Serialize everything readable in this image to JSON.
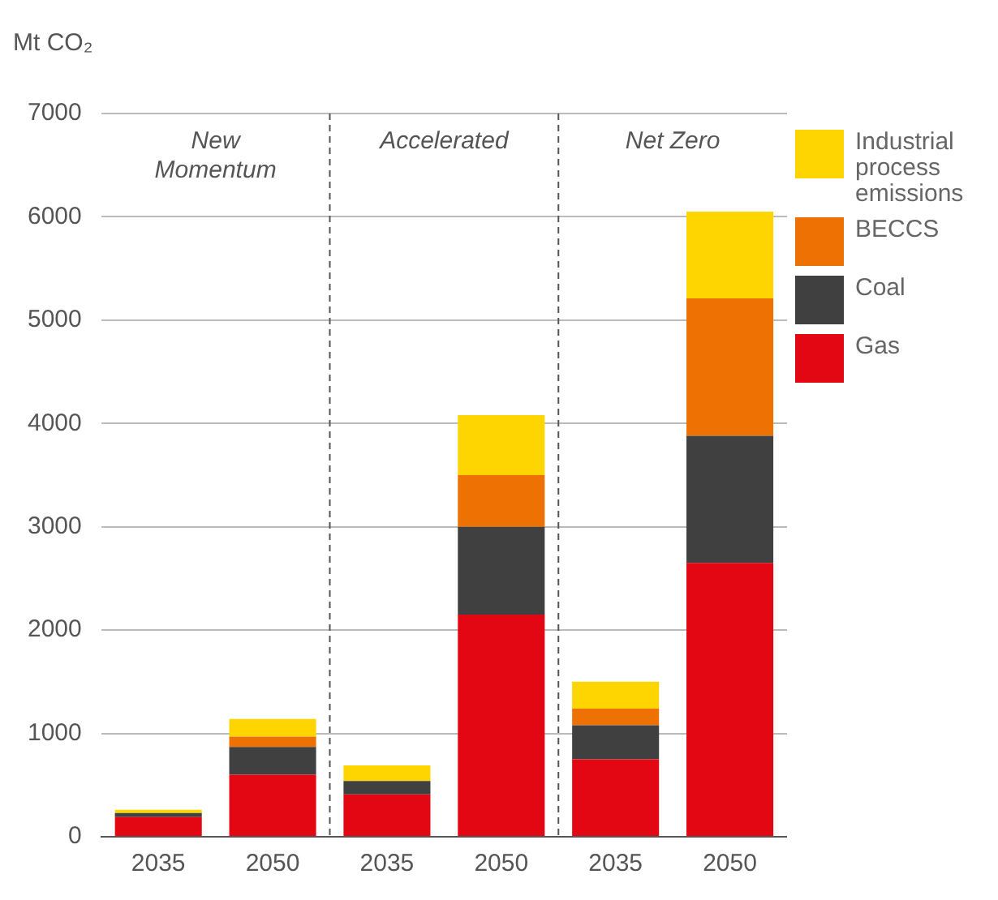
{
  "chart_data": {
    "type": "bar",
    "stacked": true,
    "ylabel": "Mt CO₂",
    "categories": [
      "2035",
      "2050",
      "2035",
      "2050",
      "2035",
      "2050"
    ],
    "series": [
      {
        "name": "Gas",
        "color": "#e30613",
        "values": [
          190,
          600,
          410,
          2150,
          750,
          2650
        ]
      },
      {
        "name": "Coal",
        "color": "#404040",
        "values": [
          40,
          270,
          130,
          850,
          330,
          1230
        ]
      },
      {
        "name": "BECCS",
        "color": "#ee7203",
        "values": [
          0,
          100,
          0,
          500,
          160,
          1330
        ]
      },
      {
        "name": "Industrial process emissions",
        "color": "#ffd500",
        "values": [
          30,
          170,
          150,
          580,
          260,
          840
        ]
      }
    ],
    "ylim": [
      0,
      7000
    ],
    "yticks": [
      0,
      1000,
      2000,
      3000,
      4000,
      5000,
      6000,
      7000
    ],
    "grid": "y",
    "legend": "right",
    "annotations": [
      "New Momentum",
      "Accelerated",
      "Net Zero"
    ]
  }
}
